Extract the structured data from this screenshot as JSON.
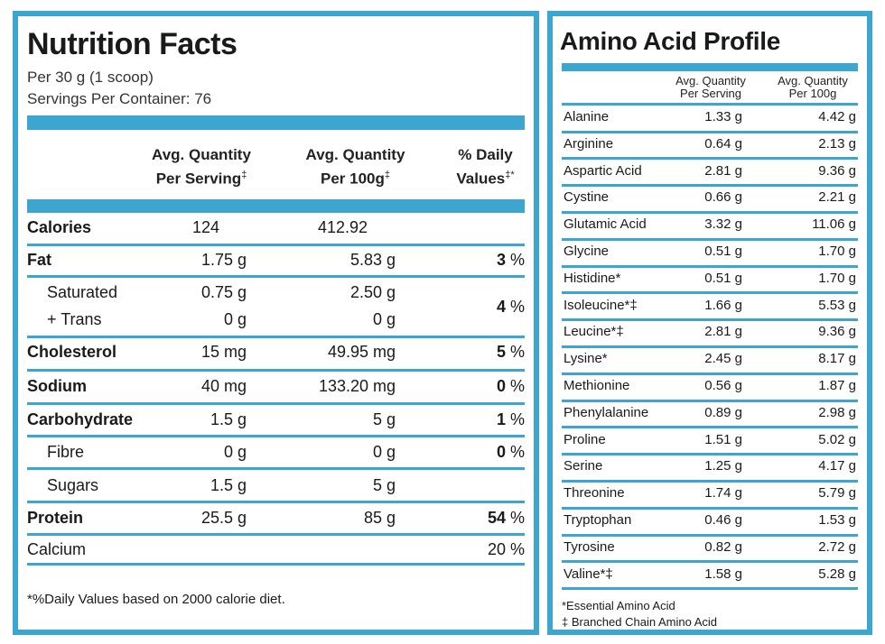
{
  "nutrition": {
    "title": "Nutrition Facts",
    "per_serving_line": "Per 30 g (1 scoop)",
    "servings_line": "Servings Per Container: 76",
    "headers": {
      "per_serving_1": "Avg. Quantity",
      "per_serving_2": "Per Serving",
      "per_100g_1": "Avg. Quantity",
      "per_100g_2": "Per 100g",
      "dv_1": "% Daily",
      "dv_2": "Values",
      "dagger": "‡",
      "dv_mark": "‡*"
    },
    "rows": [
      {
        "label": "Calories",
        "per_serving": "124",
        "per_100g": "412.92",
        "dv": ""
      },
      {
        "label": "Fat",
        "per_serving": "1.75 g",
        "per_100g": "5.83 g",
        "dv_num": "3",
        "dv_pct": "%"
      },
      {
        "label": "Saturated",
        "per_serving": "0.75 g",
        "per_100g": "2.50 g"
      },
      {
        "label": "+ Trans",
        "per_serving": "0 g",
        "per_100g": "0 g",
        "dv_num": "4",
        "dv_pct": "%"
      },
      {
        "label": "Cholesterol",
        "per_serving": "15 mg",
        "per_100g": "49.95 mg",
        "dv_num": "5",
        "dv_pct": "%"
      },
      {
        "label": "Sodium",
        "per_serving": "40 mg",
        "per_100g": "133.20 mg",
        "dv_num": "0",
        "dv_pct": "%"
      },
      {
        "label": "Carbohydrate",
        "per_serving": "1.5 g",
        "per_100g": "5 g",
        "dv_num": "1",
        "dv_pct": "%"
      },
      {
        "label": "Fibre",
        "per_serving": "0 g",
        "per_100g": "0 g",
        "dv_num": "0",
        "dv_pct": "%"
      },
      {
        "label": "Sugars",
        "per_serving": "1.5 g",
        "per_100g": "5 g"
      },
      {
        "label": "Protein",
        "per_serving": "25.5 g",
        "per_100g": "85 g",
        "dv_num": "54",
        "dv_pct": "%"
      },
      {
        "label": "Calcium",
        "dv": "20 %"
      }
    ],
    "footnote": "*%Daily Values based on 2000 calorie diet."
  },
  "amino": {
    "title": "Amino Acid Profile",
    "headers": {
      "per_serving_1": "Avg. Quantity",
      "per_serving_2": "Per Serving",
      "per_100g_1": "Avg. Quantity",
      "per_100g_2": "Per 100g"
    },
    "rows": [
      {
        "name": "Alanine",
        "per_serving": "1.33 g",
        "per_100g": "4.42 g"
      },
      {
        "name": "Arginine",
        "per_serving": "0.64 g",
        "per_100g": "2.13 g"
      },
      {
        "name": "Aspartic Acid",
        "per_serving": "2.81 g",
        "per_100g": "9.36 g"
      },
      {
        "name": "Cystine",
        "per_serving": "0.66 g",
        "per_100g": "2.21 g"
      },
      {
        "name": "Glutamic Acid",
        "per_serving": "3.32 g",
        "per_100g": "11.06 g"
      },
      {
        "name": "Glycine",
        "per_serving": "0.51 g",
        "per_100g": "1.70 g"
      },
      {
        "name": "Histidine*",
        "per_serving": "0.51 g",
        "per_100g": "1.70 g"
      },
      {
        "name": "Isoleucine*‡",
        "per_serving": "1.66 g",
        "per_100g": "5.53 g"
      },
      {
        "name": "Leucine*‡",
        "per_serving": "2.81 g",
        "per_100g": "9.36 g"
      },
      {
        "name": "Lysine*",
        "per_serving": "2.45 g",
        "per_100g": "8.17 g"
      },
      {
        "name": "Methionine",
        "per_serving": "0.56 g",
        "per_100g": "1.87 g"
      },
      {
        "name": "Phenylalanine",
        "per_serving": "0.89 g",
        "per_100g": "2.98 g"
      },
      {
        "name": "Proline",
        "per_serving": "1.51 g",
        "per_100g": "5.02 g"
      },
      {
        "name": "Serine",
        "per_serving": "1.25 g",
        "per_100g": "4.17 g"
      },
      {
        "name": "Threonine",
        "per_serving": "1.74 g",
        "per_100g": "5.79 g"
      },
      {
        "name": "Tryptophan",
        "per_serving": "0.46 g",
        "per_100g": "1.53 g"
      },
      {
        "name": "Tyrosine",
        "per_serving": "0.82 g",
        "per_100g": "2.72 g"
      },
      {
        "name": "Valine*‡",
        "per_serving": "1.58 g",
        "per_100g": "5.28 g"
      }
    ],
    "note_essential": "*Essential Amino Acid",
    "note_bcaa": "‡ Branched Chain Amino Acid"
  },
  "colors": {
    "accent": "#3ca6d0",
    "text": "#1a1a1a"
  }
}
